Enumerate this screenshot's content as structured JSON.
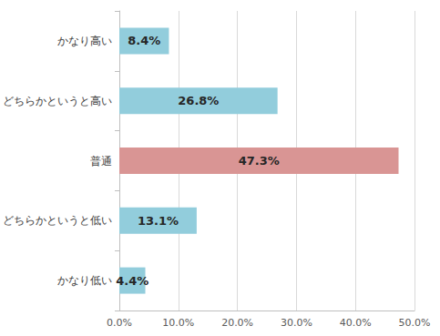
{
  "chart_data": {
    "type": "bar",
    "orientation": "horizontal",
    "categories": [
      "かなり高い",
      "どちらかというと高い",
      "普通",
      "どちらかというと低い",
      "かなり低い"
    ],
    "values": [
      8.4,
      26.8,
      47.3,
      13.1,
      4.4
    ],
    "value_labels": [
      "8.4%",
      "26.8%",
      "47.3%",
      "13.1%",
      "4.4%"
    ],
    "colors": [
      "#92cddc",
      "#92cddc",
      "#d99594",
      "#92cddc",
      "#92cddc"
    ],
    "xlim": [
      0,
      50
    ],
    "xticks": [
      {
        "value": 0,
        "label": "0.0%"
      },
      {
        "value": 10,
        "label": "10.0%"
      },
      {
        "value": 20,
        "label": "20.0%"
      },
      {
        "value": 30,
        "label": "30.0%"
      },
      {
        "value": 40,
        "label": "40.0%"
      },
      {
        "value": 50,
        "label": "50.0%"
      }
    ],
    "grid": true,
    "data_labels": true
  }
}
